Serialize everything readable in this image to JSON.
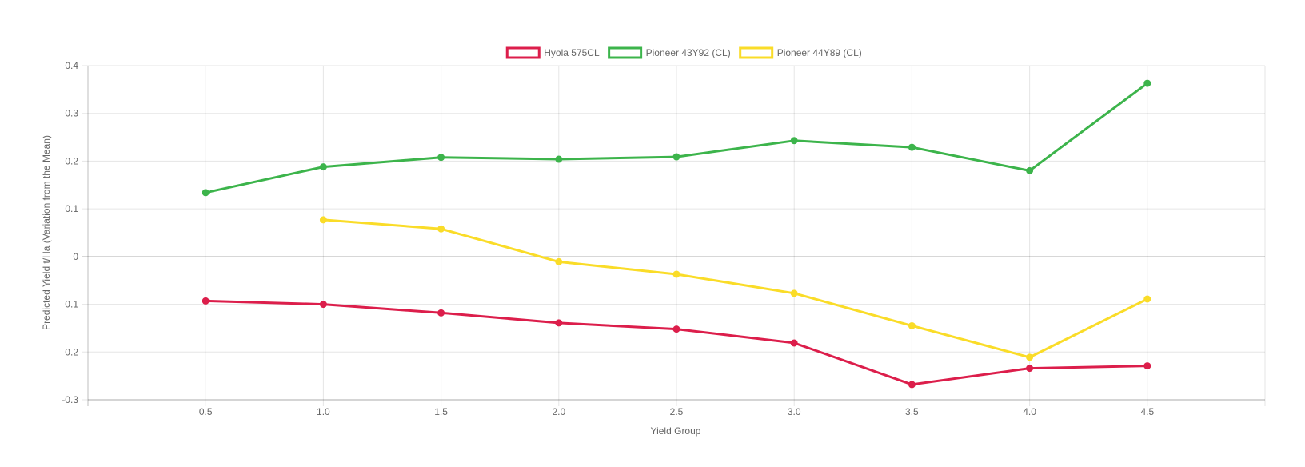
{
  "chart_data": {
    "type": "line",
    "xlabel": "Yield Group",
    "ylabel": "Predicted Yield t/Ha (Variation from the Mean)",
    "x_ticks": [
      "0.5",
      "1.0",
      "1.5",
      "2.0",
      "2.5",
      "3.0",
      "3.5",
      "4.0",
      "4.5"
    ],
    "y_ticks": [
      "0.4",
      "0.3",
      "0.2",
      "0.1",
      "0",
      "-0.1",
      "-0.2",
      "-0.3"
    ],
    "xlim": [
      0,
      5
    ],
    "ylim": [
      -0.3,
      0.4
    ],
    "grid": true,
    "legend_position": "top-center",
    "series": [
      {
        "name": "Hyola 575CL",
        "color": "#dc1e4b",
        "x": [
          0.5,
          1.0,
          1.5,
          2.0,
          2.5,
          3.0,
          3.5,
          4.0,
          4.5
        ],
        "values": [
          -0.093,
          -0.1,
          -0.118,
          -0.139,
          -0.152,
          -0.181,
          -0.268,
          -0.234,
          -0.229
        ]
      },
      {
        "name": "Pioneer 43Y92 (CL)",
        "color": "#3cb44b",
        "x": [
          0.5,
          1.0,
          1.5,
          2.0,
          2.5,
          3.0,
          3.5,
          4.0,
          4.5
        ],
        "values": [
          0.134,
          0.188,
          0.208,
          0.204,
          0.209,
          0.243,
          0.229,
          0.18,
          0.363
        ]
      },
      {
        "name": "Pioneer 44Y89 (CL)",
        "color": "#fadc28",
        "x": [
          1.0,
          1.5,
          2.0,
          2.5,
          3.0,
          3.5,
          4.0,
          4.5
        ],
        "values": [
          0.077,
          0.058,
          -0.011,
          -0.037,
          -0.077,
          -0.145,
          -0.211,
          -0.089
        ]
      }
    ]
  }
}
